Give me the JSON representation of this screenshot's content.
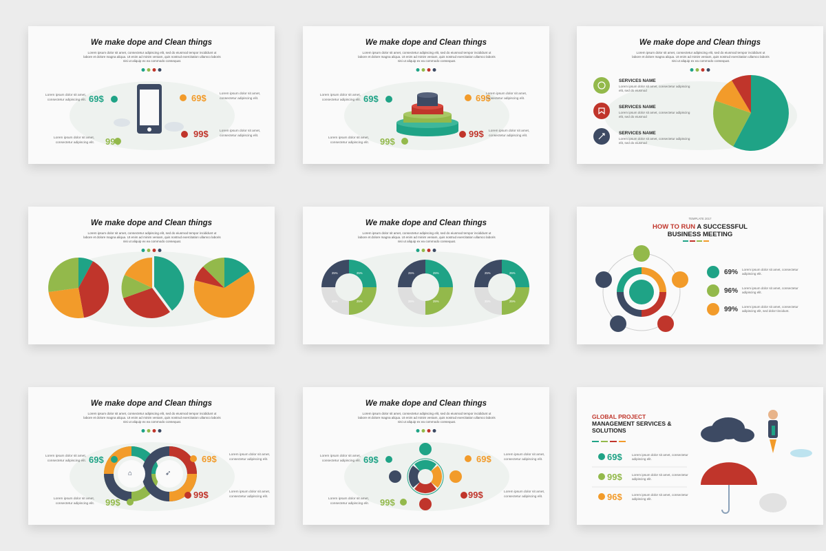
{
  "colors": {
    "teal": "#1fa386",
    "green": "#93b94b",
    "orange": "#f29b2a",
    "red": "#c0352b",
    "navy": "#3d4a63",
    "lightgray": "#dedede"
  },
  "common": {
    "title": "We make dope and Clean things",
    "body": "Lorem ipsum dolor sit amet, consectetur adipiscing elit, sed do eiusmod tempor incididunt ut labore et dolore magna aliqua. Ut enim ad minim veniam, quis nostrud exercitation ullamco laboris nisi ut aliquip ex ea commodo consequat.",
    "side_text": "Lorem ipsum dolor sit amet, consectetur adipiscing elit."
  },
  "prices": {
    "p1": "69$",
    "p2": "69$",
    "p3": "99$",
    "p4": "99$"
  },
  "slide3": {
    "services": [
      {
        "name": "SERVICES NAME",
        "desc": "Lorem ipsum dolor sit amet, consectetur adipiscing elit, sed do eiusmod"
      },
      {
        "name": "SERVICES NAME",
        "desc": "Lorem ipsum dolor sit amet, consectetur adipiscing elit, sed do eiusmod"
      },
      {
        "name": "SERVICES NAME",
        "desc": "Lorem ipsum dolor sit amet, consectetur adipiscing elit, sed do eiusmod"
      }
    ]
  },
  "slide5": {
    "donut_label": "25%"
  },
  "slide6": {
    "template": "TEMPLATE 2017",
    "title_red": "HOW TO RUN",
    "title_rest": " A SUCCESSFUL",
    "title_line2": "BUSINESS MEETING",
    "stats": [
      {
        "value": "69%",
        "desc": "Lorem ipsum dolor sit amet, consectetur adipiscing elit."
      },
      {
        "value": "96%",
        "desc": "Lorem ipsum dolor sit amet, consectetur adipiscing elit."
      },
      {
        "value": "99%",
        "desc": "Lorem ipsum dolor sit amet, consectetur adipiscing elit, sed dolor tincidunt."
      }
    ]
  },
  "slide9": {
    "title_red": "GLOBAL PROJECT",
    "title_line2": "MANAGEMENT SERVICES &",
    "title_line3": "SOLUTIONS",
    "items": [
      {
        "value": "69$",
        "desc": "Lorem ipsum dolor sit amet, consectetur adipiscing elit."
      },
      {
        "value": "99$",
        "desc": "Lorem ipsum dolor sit amet, consectetur adipiscing elit."
      },
      {
        "value": "96$",
        "desc": "Lorem ipsum dolor sit amet, consectetur adipiscing elit."
      }
    ]
  }
}
